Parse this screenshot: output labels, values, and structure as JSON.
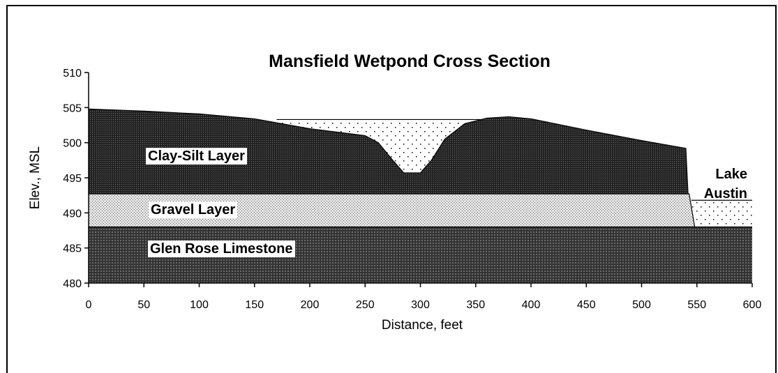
{
  "chart_data": {
    "type": "area",
    "title": "Mansfield Wetpond Cross Section",
    "xlabel": "Distance, feet",
    "ylabel": "Elev., MSL",
    "xlim": [
      0,
      600
    ],
    "xticks": [
      0,
      50,
      100,
      150,
      200,
      250,
      300,
      350,
      400,
      450,
      500,
      550,
      600
    ],
    "ylim": [
      480,
      510
    ],
    "yticks": [
      480,
      485,
      490,
      495,
      500,
      505,
      510
    ],
    "series": [
      {
        "color": "#ffffff",
        "pattern": "sparse-dots",
        "x": [
          170,
          365
        ],
        "values": [
          503.3,
          503.3
        ]
      },
      {
        "name": "Lake Austin",
        "color": "#ffffff",
        "pattern": "sparse-dots",
        "x": [
          545,
          600
        ],
        "values": [
          491.8,
          491.8
        ]
      },
      {
        "name": "Clay-Silt Layer",
        "color": "#333333",
        "pattern": "dark-hatch",
        "x": [
          0,
          50,
          100,
          150,
          200,
          250,
          262,
          275,
          285,
          300,
          310,
          322,
          340,
          360,
          380,
          400,
          450,
          500,
          540,
          542
        ],
        "values": [
          504.8,
          504.5,
          504.1,
          503.4,
          502,
          501,
          500,
          497.5,
          495.7,
          495.7,
          497.5,
          500.5,
          502.7,
          503.5,
          503.7,
          503.4,
          501.8,
          500.3,
          499.2,
          492.7
        ]
      },
      {
        "name": "Gravel Layer",
        "color": "#d8d8d8",
        "pattern": "fine-dots",
        "x": [
          0,
          543,
          548
        ],
        "values": [
          492.7,
          492.7,
          488
        ]
      },
      {
        "name": "Glen Rose Limestone",
        "color": "#4a4a4a",
        "pattern": "dark-grid",
        "x": [
          0,
          600
        ],
        "values": [
          488,
          488
        ]
      }
    ]
  }
}
